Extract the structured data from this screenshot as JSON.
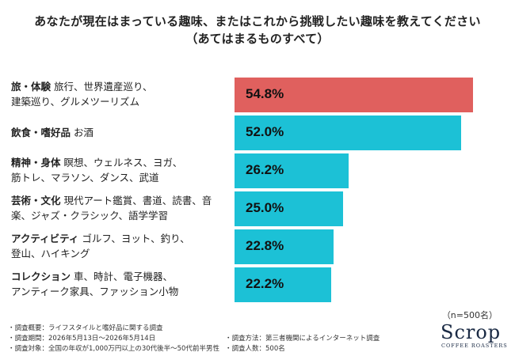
{
  "title": {
    "line1": "あなたが現在はまっている趣味、またはこれから挑戦したい趣味を教えてください",
    "line2": "（あてはまるものすべて）"
  },
  "chart_data": {
    "type": "bar",
    "orientation": "horizontal",
    "categories": [
      {
        "name": "旅・体験",
        "detail_line1": "旅行、世界遺産巡り、",
        "detail_line2": "建築巡り、グルメツーリズム"
      },
      {
        "name": "飲食・嗜好品",
        "detail_line1": "お酒",
        "detail_line2": ""
      },
      {
        "name": "精神・身体",
        "detail_line1": "瞑想、ウェルネス、ヨガ、",
        "detail_line2": "筋トレ、マラソン、ダンス、武道"
      },
      {
        "name": "芸術・文化",
        "detail_line1": "現代アート鑑賞、書道、読書、音",
        "detail_line2": "楽、ジャズ・クラシック、語学学習"
      },
      {
        "name": "アクティビティ",
        "detail_line1": "ゴルフ、ヨット、釣り、",
        "detail_line2": "登山、ハイキング"
      },
      {
        "name": "コレクション",
        "detail_line1": "車、時計、電子機器、",
        "detail_line2": "アンティーク家具、ファッション小物"
      }
    ],
    "values": [
      54.8,
      52.0,
      26.2,
      25.0,
      22.8,
      22.2
    ],
    "value_labels": [
      "54.8%",
      "52.0%",
      "26.2%",
      "25.0%",
      "22.8%",
      "22.2%"
    ],
    "colors": [
      "#e0605e",
      "#1cc1d6",
      "#1cc1d6",
      "#1cc1d6",
      "#1cc1d6",
      "#1cc1d6"
    ],
    "xlim": [
      0,
      55
    ],
    "grid": false
  },
  "sample_note": "（n=500名）",
  "footnotes": {
    "left": [
      "・調査概要：ライフスタイルと嗜好品に関する調査",
      "・調査期間：2026年5月13日～2026年5月14日",
      "・調査対象：全国の年収が1,000万円以上の30代後半～50代前半男性"
    ],
    "right": [
      "・調査方法：第三者機関によるインターネット調査",
      "・調査人数：500名"
    ]
  },
  "logo": {
    "main": "Scrop",
    "sub": "COFFEE ROASTERS"
  }
}
